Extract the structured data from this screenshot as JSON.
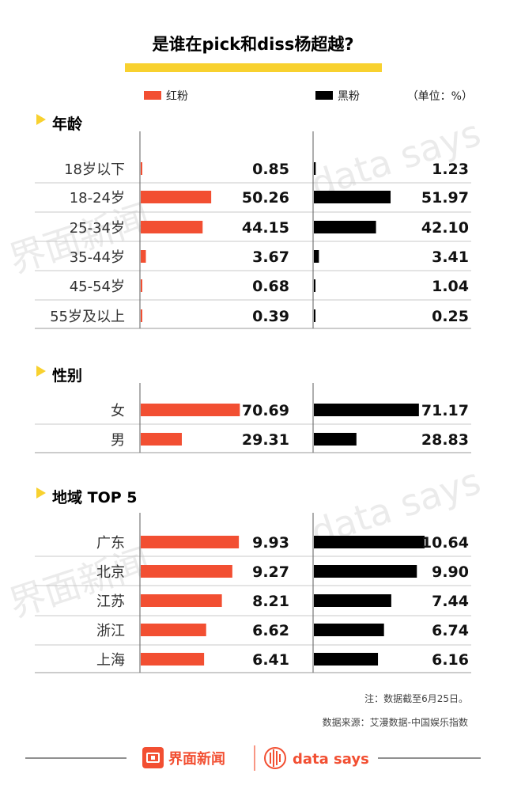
{
  "title": "是谁在pick和diss杨超越?",
  "legend": {
    "red_label": "红粉",
    "black_label": "黑粉",
    "unit": "（单位：%）"
  },
  "colors": {
    "red": "#f24f32",
    "black": "#000000",
    "accent_yellow": "#f8d12f",
    "divider": "#c8c8c8"
  },
  "chart_data": [
    {
      "type": "bar",
      "section": "年龄",
      "categories": [
        "18岁以下",
        "18-24岁",
        "25-34岁",
        "35-44岁",
        "45-54岁",
        "55岁及以上"
      ],
      "series": [
        {
          "name": "红粉",
          "values": [
            "0.85",
            "50.26",
            "44.15",
            "3.67",
            "0.68",
            "0.39"
          ]
        },
        {
          "name": "黑粉",
          "values": [
            "1.23",
            "51.97",
            "42.10",
            "3.41",
            "1.04",
            "0.25"
          ]
        }
      ]
    },
    {
      "type": "bar",
      "section": "性别",
      "categories": [
        "女",
        "男"
      ],
      "series": [
        {
          "name": "红粉",
          "values": [
            "70.69",
            "29.31"
          ]
        },
        {
          "name": "黑粉",
          "values": [
            "71.17",
            "28.83"
          ]
        }
      ]
    },
    {
      "type": "bar",
      "section": "地域 TOP 5",
      "categories": [
        "广东",
        "北京",
        "江苏",
        "浙江",
        "上海"
      ],
      "series": [
        {
          "name": "红粉",
          "values": [
            "9.93",
            "9.27",
            "8.21",
            "6.62",
            "6.41"
          ]
        },
        {
          "name": "黑粉",
          "values": [
            "10.64",
            "9.90",
            "7.44",
            "6.74",
            "6.16"
          ]
        }
      ]
    }
  ],
  "notes": {
    "note": "注：数据截至6月25日。",
    "source": "数据来源：艾漫数据-中国娱乐指数"
  },
  "footer": {
    "brand_cn": "界面新闻",
    "brand_en": "data says"
  }
}
